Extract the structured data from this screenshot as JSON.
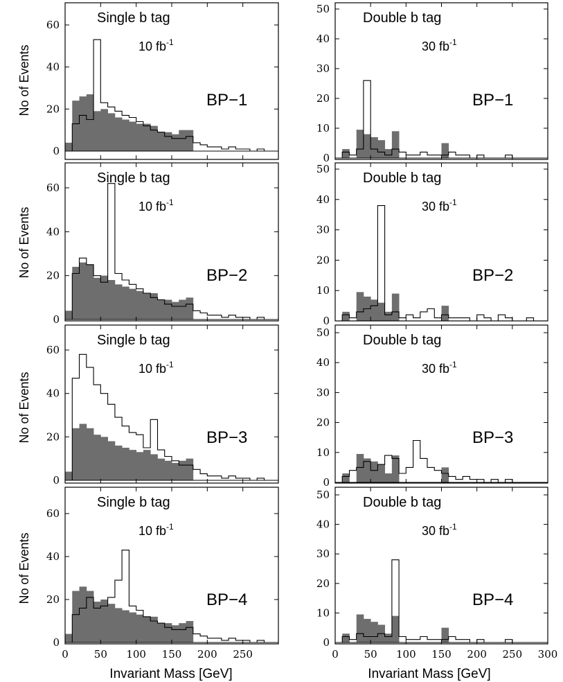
{
  "figure": {
    "xlabel": "Invariant Mass [GeV]",
    "ylabel": "No of Events"
  },
  "chart_data": [
    {
      "type": "histogram",
      "title": "Single b tag",
      "lumi_main": "10 fb",
      "lumi_sup": "-1",
      "benchmark": "BP−1",
      "xlim": [
        0,
        300
      ],
      "ylim": [
        0,
        70
      ],
      "yticks": [
        0,
        20,
        40,
        60
      ],
      "xticks": [],
      "bin_width": 10,
      "bin_edges": [
        0,
        10,
        20,
        30,
        40,
        50,
        60,
        70,
        80,
        90,
        100,
        110,
        120,
        130,
        140,
        150,
        160,
        170,
        180,
        190,
        200,
        210,
        220,
        230,
        240,
        250,
        260,
        270,
        280,
        290
      ],
      "filled_values": [
        4,
        24,
        26,
        27,
        19,
        20,
        18,
        16,
        15,
        14,
        13,
        13,
        12,
        9,
        9,
        8,
        10,
        10,
        0,
        0,
        0,
        0,
        0,
        0,
        0,
        0,
        0,
        0,
        0,
        0
      ],
      "open_values": [
        0,
        13,
        17,
        15,
        53,
        23,
        21,
        19,
        17,
        16,
        14,
        12,
        10,
        9,
        7,
        6,
        6,
        7,
        4,
        3,
        2,
        2,
        1,
        2,
        1,
        1,
        0,
        1,
        0,
        0
      ]
    },
    {
      "type": "histogram",
      "title": "Double b tag",
      "lumi_main": "30 fb",
      "lumi_sup": "-1",
      "benchmark": "BP−1",
      "xlim": [
        0,
        300
      ],
      "ylim": [
        0,
        50
      ],
      "yticks": [
        0,
        10,
        20,
        30,
        40,
        50
      ],
      "xticks": [],
      "bin_width": 10,
      "bin_edges": [
        0,
        10,
        20,
        30,
        40,
        50,
        60,
        70,
        80,
        90,
        100,
        110,
        120,
        130,
        140,
        150,
        160,
        170,
        180,
        190,
        200,
        210,
        220,
        230,
        240,
        250,
        260,
        270,
        280,
        290
      ],
      "filled_values": [
        0,
        3,
        0,
        9.5,
        8,
        7,
        6,
        3,
        9,
        0,
        0,
        0,
        0,
        0,
        0,
        5,
        0,
        0,
        0,
        0,
        0,
        0,
        0,
        0,
        0,
        0,
        0,
        0,
        0,
        0
      ],
      "open_values": [
        0,
        2,
        1,
        3,
        26,
        3,
        2,
        1,
        3,
        2,
        1,
        1,
        2,
        1,
        1,
        1,
        2,
        1,
        1,
        0,
        1,
        0,
        0,
        0,
        1,
        0,
        0,
        0,
        0,
        0
      ]
    },
    {
      "type": "histogram",
      "title": "Single b tag",
      "lumi_main": "10 fb",
      "lumi_sup": "-1",
      "benchmark": "BP−2",
      "xlim": [
        0,
        300
      ],
      "ylim": [
        0,
        70
      ],
      "yticks": [
        0,
        20,
        40,
        60
      ],
      "xticks": [],
      "bin_width": 10,
      "bin_edges": [
        0,
        10,
        20,
        30,
        40,
        50,
        60,
        70,
        80,
        90,
        100,
        110,
        120,
        130,
        140,
        150,
        160,
        170,
        180,
        190,
        200,
        210,
        220,
        230,
        240,
        250,
        260,
        270,
        280,
        290
      ],
      "filled_values": [
        4,
        24,
        26,
        25,
        19,
        20,
        18,
        16,
        15,
        14,
        13,
        12,
        12,
        9,
        9,
        8,
        9,
        10,
        0,
        0,
        0,
        0,
        0,
        0,
        0,
        0,
        0,
        0,
        0,
        0
      ],
      "open_values": [
        0,
        21,
        28,
        25,
        20,
        17,
        62,
        21,
        18,
        16,
        14,
        12,
        10,
        9,
        7,
        6,
        6,
        7,
        4,
        3,
        2,
        2,
        1,
        2,
        1,
        1,
        0,
        1,
        0,
        0
      ]
    },
    {
      "type": "histogram",
      "title": "Double b tag",
      "lumi_main": "30 fb",
      "lumi_sup": "-1",
      "benchmark": "BP−2",
      "xlim": [
        0,
        300
      ],
      "ylim": [
        0,
        50
      ],
      "yticks": [
        0,
        10,
        20,
        30,
        40,
        50
      ],
      "xticks": [],
      "bin_width": 10,
      "bin_edges": [
        0,
        10,
        20,
        30,
        40,
        50,
        60,
        70,
        80,
        90,
        100,
        110,
        120,
        130,
        140,
        150,
        160,
        170,
        180,
        190,
        200,
        210,
        220,
        230,
        240,
        250,
        260,
        270,
        280,
        290
      ],
      "filled_values": [
        0,
        3,
        0,
        9.5,
        8,
        7,
        6,
        3,
        9,
        0,
        0,
        0,
        0,
        0,
        0,
        5,
        0,
        0,
        0,
        0,
        0,
        0,
        0,
        0,
        0,
        0,
        0,
        0,
        0,
        0
      ],
      "open_values": [
        0,
        2,
        1,
        3,
        4,
        5,
        38,
        2,
        3,
        1,
        2,
        1,
        3,
        4,
        1,
        2,
        1,
        1,
        1,
        0,
        2,
        1,
        0,
        2,
        1,
        0,
        0,
        1,
        0,
        0
      ]
    },
    {
      "type": "histogram",
      "title": "Single b tag",
      "lumi_main": "10 fb",
      "lumi_sup": "-1",
      "benchmark": "BP−3",
      "xlim": [
        0,
        300
      ],
      "ylim": [
        0,
        70
      ],
      "yticks": [
        0,
        20,
        40,
        60
      ],
      "xticks": [],
      "bin_width": 10,
      "bin_edges": [
        0,
        10,
        20,
        30,
        40,
        50,
        60,
        70,
        80,
        90,
        100,
        110,
        120,
        130,
        140,
        150,
        160,
        170,
        180,
        190,
        200,
        210,
        220,
        230,
        240,
        250,
        260,
        270,
        280,
        290
      ],
      "filled_values": [
        4,
        24,
        26,
        24,
        21,
        20,
        18,
        16,
        15,
        14,
        13,
        14,
        12,
        10,
        9,
        8,
        9,
        10,
        0,
        0,
        0,
        0,
        0,
        0,
        0,
        0,
        0,
        0,
        0,
        0
      ],
      "open_values": [
        0,
        47,
        58,
        52,
        44,
        40,
        35,
        29,
        25,
        22,
        21,
        15,
        28,
        14,
        11,
        9,
        7,
        7,
        5,
        3,
        2,
        2,
        1,
        2,
        1,
        1,
        0,
        1,
        0,
        0
      ]
    },
    {
      "type": "histogram",
      "title": "Double b tag",
      "lumi_main": "30 fb",
      "lumi_sup": "-1",
      "benchmark": "BP−3",
      "xlim": [
        0,
        300
      ],
      "ylim": [
        0,
        50
      ],
      "yticks": [
        0,
        10,
        20,
        30,
        40,
        50
      ],
      "xticks": [],
      "bin_width": 10,
      "bin_edges": [
        0,
        10,
        20,
        30,
        40,
        50,
        60,
        70,
        80,
        90,
        100,
        110,
        120,
        130,
        140,
        150,
        160,
        170,
        180,
        190,
        200,
        210,
        220,
        230,
        240,
        250,
        260,
        270,
        280,
        290
      ],
      "filled_values": [
        0,
        3,
        0,
        9.5,
        8,
        7,
        6,
        3,
        9,
        0,
        0,
        0,
        0,
        0,
        0,
        5,
        0,
        0,
        0,
        0,
        0,
        0,
        0,
        0,
        0,
        0,
        0,
        0,
        0,
        0
      ],
      "open_values": [
        0,
        2,
        4,
        5,
        7,
        4,
        6,
        9,
        8,
        3,
        5,
        14,
        8,
        5,
        4,
        3,
        2,
        1,
        2,
        1,
        1,
        0,
        1,
        0,
        1,
        0,
        0,
        0,
        0,
        0
      ]
    },
    {
      "type": "histogram",
      "title": "Single b tag",
      "lumi_main": "10 fb",
      "lumi_sup": "-1",
      "benchmark": "BP−4",
      "xlim": [
        0,
        300
      ],
      "ylim": [
        0,
        70
      ],
      "yticks": [
        0,
        20,
        40,
        60
      ],
      "xticks": [
        0,
        50,
        100,
        150,
        200,
        250
      ],
      "xlabel": "Invariant Mass [GeV]",
      "bin_width": 10,
      "bin_edges": [
        0,
        10,
        20,
        30,
        40,
        50,
        60,
        70,
        80,
        90,
        100,
        110,
        120,
        130,
        140,
        150,
        160,
        170,
        180,
        190,
        200,
        210,
        220,
        230,
        240,
        250,
        260,
        270,
        280,
        290
      ],
      "filled_values": [
        4,
        24,
        26,
        24,
        19,
        20,
        18,
        16,
        15,
        14,
        13,
        12,
        12,
        9,
        9,
        8,
        9,
        10,
        0,
        0,
        0,
        0,
        0,
        0,
        0,
        0,
        0,
        0,
        0,
        0
      ],
      "open_values": [
        0,
        13,
        16,
        21,
        16,
        17,
        21,
        29,
        43,
        17,
        15,
        12,
        10,
        9,
        7,
        6,
        6,
        7,
        4,
        3,
        2,
        2,
        1,
        2,
        1,
        1,
        0,
        1,
        0,
        0
      ]
    },
    {
      "type": "histogram",
      "title": "Double b tag",
      "lumi_main": "30 fb",
      "lumi_sup": "-1",
      "benchmark": "BP−4",
      "xlim": [
        0,
        300
      ],
      "ylim": [
        0,
        50
      ],
      "yticks": [
        0,
        10,
        20,
        30,
        40,
        50
      ],
      "xticks": [
        0,
        50,
        100,
        150,
        200,
        250,
        300
      ],
      "xlabel": "Invariant Mass [GeV]",
      "bin_width": 10,
      "bin_edges": [
        0,
        10,
        20,
        30,
        40,
        50,
        60,
        70,
        80,
        90,
        100,
        110,
        120,
        130,
        140,
        150,
        160,
        170,
        180,
        190,
        200,
        210,
        220,
        230,
        240,
        250,
        260,
        270,
        280,
        290
      ],
      "filled_values": [
        0,
        3,
        0,
        9.5,
        8,
        7,
        6,
        3,
        9,
        0,
        0,
        0,
        0,
        0,
        0,
        5,
        0,
        0,
        0,
        0,
        0,
        0,
        0,
        0,
        0,
        0,
        0,
        0,
        0,
        0
      ],
      "open_values": [
        0,
        2,
        1,
        3,
        2,
        2,
        3,
        2,
        28,
        2,
        1,
        1,
        2,
        1,
        1,
        1,
        2,
        1,
        1,
        0,
        1,
        0,
        0,
        0,
        1,
        0,
        0,
        0,
        0,
        0
      ]
    }
  ]
}
